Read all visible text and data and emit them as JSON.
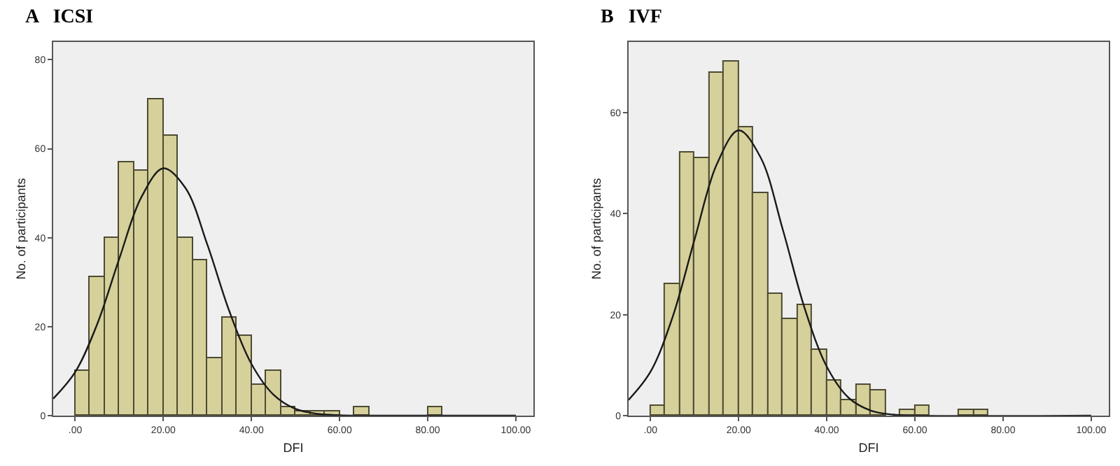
{
  "chart_data": [
    {
      "type": "histogram",
      "title": "A   ICSI",
      "xlabel": "DFI",
      "ylabel": "No. of participants",
      "color": "#d6d09a",
      "grid": false,
      "bins": [
        0,
        3.33,
        6.67,
        10,
        13.33,
        16.67,
        20,
        23.33,
        26.67,
        30,
        33.33,
        36.67,
        40,
        43.33,
        46.67,
        50,
        53.33,
        56.67,
        60,
        63.33,
        66.67,
        70,
        73.33,
        76.67,
        80,
        83.33
      ],
      "values": [
        10,
        31,
        40,
        57,
        55,
        71,
        63,
        40,
        35,
        13,
        22,
        18,
        7,
        10,
        2,
        1,
        1,
        1,
        0,
        2,
        0,
        0,
        0,
        0,
        2
      ],
      "series": [
        {
          "type": "line",
          "color": "#1a1a1a",
          "x": [
            -5,
            0,
            5,
            10,
            15,
            20,
            25,
            30,
            35,
            40,
            45,
            50,
            55,
            60,
            65,
            100
          ],
          "values": [
            3.8,
            9.8,
            20.6,
            35.3,
            49.1,
            55.6,
            51.2,
            38.4,
            23.4,
            11.6,
            4.7,
            1.5,
            0.4,
            0.1,
            0,
            0
          ]
        }
      ],
      "xlim": [
        -5,
        104
      ],
      "ylim": [
        0,
        84
      ],
      "xticks": [
        {
          "value": 0,
          "label": ".00"
        },
        {
          "value": 20,
          "label": "20.00"
        },
        {
          "value": 40,
          "label": "40.00"
        },
        {
          "value": 60,
          "label": "60.00"
        },
        {
          "value": 80,
          "label": "80.00"
        },
        {
          "value": 100,
          "label": "100.00"
        }
      ],
      "yticks": [
        0,
        20,
        40,
        60,
        80
      ]
    },
    {
      "type": "histogram",
      "title": "B   IVF",
      "xlabel": "DFI",
      "ylabel": "No. of participants",
      "color": "#d6d09a",
      "grid": false,
      "bins": [
        0,
        3.33,
        6.67,
        10,
        13.33,
        16.67,
        20,
        23.33,
        26.67,
        30,
        33.33,
        36.67,
        40,
        43.33,
        46.67,
        50,
        53.33,
        56.67,
        60,
        63.33,
        66.67,
        70,
        73.33,
        76.67
      ],
      "values": [
        2,
        26,
        52,
        51,
        68,
        70,
        57,
        44,
        24,
        19,
        22,
        13,
        7,
        3,
        6,
        5,
        0,
        1,
        2,
        0,
        0,
        1,
        1
      ],
      "series": [
        {
          "type": "line",
          "color": "#1a1a1a",
          "x": [
            -5,
            0,
            5,
            10,
            15,
            20,
            25,
            30,
            35,
            40,
            45,
            50,
            55,
            60,
            100
          ],
          "values": [
            3.1,
            8.7,
            19.5,
            34.9,
            49.7,
            56.5,
            51.1,
            36.9,
            21.2,
            9.7,
            3.5,
            1.0,
            0.2,
            0,
            0
          ]
        }
      ],
      "xlim": [
        -5,
        104
      ],
      "ylim": [
        0,
        74
      ],
      "xticks": [
        {
          "value": 0,
          "label": ".00"
        },
        {
          "value": 20,
          "label": "20.00"
        },
        {
          "value": 40,
          "label": "40.00"
        },
        {
          "value": 60,
          "label": "60.00"
        },
        {
          "value": 80,
          "label": "80.00"
        },
        {
          "value": 100,
          "label": "100.00"
        }
      ],
      "yticks": [
        0,
        20,
        40,
        60
      ]
    }
  ]
}
